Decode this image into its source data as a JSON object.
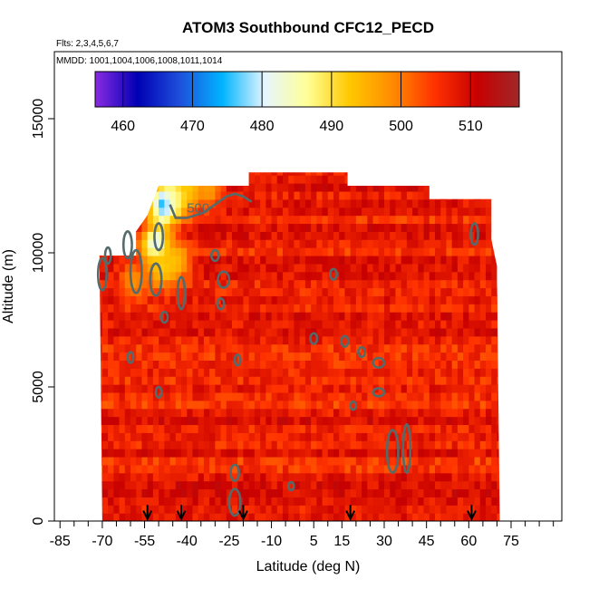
{
  "chart_data": {
    "type": "heatmap",
    "title": "ATOM3 Southbound CFC12_PECD",
    "flights_label": "Flts: 2,3,4,5,6,7",
    "mmdd_label": "MMDD: 1001,1004,1006,1008,1011,1014",
    "xlabel": "Latitude (deg N)",
    "ylabel": "Altitude (m)",
    "xlim": [
      -87,
      93
    ],
    "ylim": [
      0,
      17500
    ],
    "x_ticks": [
      -85,
      -70,
      -55,
      -40,
      -25,
      -10,
      5,
      15,
      30,
      45,
      60,
      75
    ],
    "x_minor_ticks": [
      -80,
      -75,
      -65,
      -60,
      -50,
      -45,
      -35,
      -30,
      -20,
      -15,
      -5,
      0,
      10,
      20,
      25,
      35,
      40,
      50,
      55,
      65,
      70,
      80,
      85,
      90
    ],
    "y_ticks": [
      0,
      5000,
      10000,
      15000
    ],
    "colorbar": {
      "range": [
        456,
        517
      ],
      "ticks": [
        460,
        470,
        480,
        490,
        500,
        510
      ],
      "colors": [
        "#8a2be2",
        "#0000b4",
        "#1e50dc",
        "#00b4ff",
        "#e6f5ff",
        "#ffff96",
        "#ffc800",
        "#ff8c00",
        "#ff3200",
        "#c80000",
        "#a02828"
      ]
    },
    "contour_levels": [
      490,
      500
    ],
    "contour_label": "500",
    "contour_label_position": [
      -40,
      11500
    ],
    "profile_latitudes": [
      -54,
      -42,
      -20,
      18,
      61
    ],
    "data_extent": {
      "x_west_bottom": -70,
      "x_west_top": -74,
      "x_east_bottom": 71,
      "x_east_top": 70,
      "top_edge": [
        [
          -71,
          9900
        ],
        [
          -58,
          9900
        ],
        [
          -58,
          10800
        ],
        [
          -54,
          11400
        ],
        [
          -50,
          12500
        ],
        [
          -18,
          12500
        ],
        [
          -18,
          13000
        ],
        [
          17,
          13000
        ],
        [
          17,
          12500
        ],
        [
          46,
          12500
        ],
        [
          46,
          12000
        ],
        [
          68,
          12000
        ],
        [
          68,
          10500
        ],
        [
          70,
          9500
        ]
      ]
    },
    "field_values": {
      "background": 507,
      "low_region_patches": [
        {
          "lat": -52,
          "alt": 10200,
          "value": 478
        },
        {
          "lat": -49,
          "alt": 11700,
          "value": 470
        },
        {
          "lat": -45,
          "alt": 12000,
          "value": 484
        },
        {
          "lat": -40,
          "alt": 12300,
          "value": 492
        },
        {
          "lat": -33,
          "alt": 12300,
          "value": 497
        },
        {
          "lat": -45,
          "alt": 9500,
          "value": 494
        },
        {
          "lat": -50,
          "alt": 9300,
          "value": 492
        },
        {
          "lat": -60,
          "alt": 8800,
          "value": 498
        }
      ]
    }
  }
}
